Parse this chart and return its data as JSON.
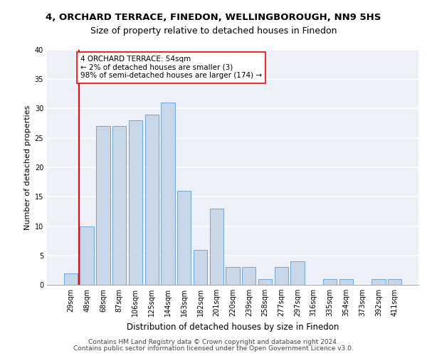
{
  "title1": "4, ORCHARD TERRACE, FINEDON, WELLINGBOROUGH, NN9 5HS",
  "title2": "Size of property relative to detached houses in Finedon",
  "xlabel": "Distribution of detached houses by size in Finedon",
  "ylabel": "Number of detached properties",
  "categories": [
    "29sqm",
    "48sqm",
    "68sqm",
    "87sqm",
    "106sqm",
    "125sqm",
    "144sqm",
    "163sqm",
    "182sqm",
    "201sqm",
    "220sqm",
    "239sqm",
    "258sqm",
    "277sqm",
    "297sqm",
    "316sqm",
    "335sqm",
    "354sqm",
    "373sqm",
    "392sqm",
    "411sqm"
  ],
  "values": [
    2,
    10,
    27,
    27,
    28,
    29,
    31,
    16,
    6,
    13,
    3,
    3,
    1,
    3,
    4,
    0,
    1,
    1,
    0,
    1,
    1
  ],
  "bar_color": "#c8d8e8",
  "bar_edge_color": "#5b9bd5",
  "annotation_line1": "4 ORCHARD TERRACE: 54sqm",
  "annotation_line2": "← 2% of detached houses are smaller (3)",
  "annotation_line3": "98% of semi-detached houses are larger (174) →",
  "annotation_box_color": "white",
  "annotation_box_edge_color": "red",
  "vline_x": 0.5,
  "vline_color": "red",
  "ylim": [
    0,
    40
  ],
  "yticks": [
    0,
    5,
    10,
    15,
    20,
    25,
    30,
    35,
    40
  ],
  "footer1": "Contains HM Land Registry data © Crown copyright and database right 2024.",
  "footer2": "Contains public sector information licensed under the Open Government Licence v3.0.",
  "bg_color": "#eef2f8",
  "grid_color": "white",
  "title1_fontsize": 9.5,
  "title2_fontsize": 9,
  "xlabel_fontsize": 8.5,
  "ylabel_fontsize": 8,
  "tick_fontsize": 7,
  "footer_fontsize": 6.5,
  "annotation_fontsize": 7.5
}
